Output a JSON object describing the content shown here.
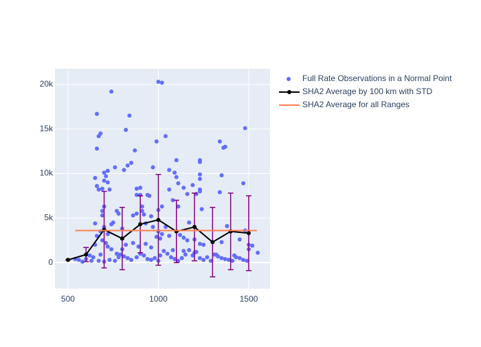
{
  "chart_data": {
    "type": "scatter",
    "xlim": [
      428,
      1618
    ],
    "ylim": [
      -2920,
      21770
    ],
    "xticks": [
      500,
      1000,
      1500
    ],
    "yticks": [
      0,
      {
        "value": 5000,
        "label": "5k"
      },
      {
        "value": 10000,
        "label": "10k"
      },
      {
        "value": 15000,
        "label": "15k"
      },
      {
        "value": 20000,
        "label": "20k"
      }
    ],
    "grid": true,
    "series": [
      {
        "name": "Full Rate Observations in a Normal Point",
        "color": "#636efa",
        "mode": "markers",
        "x": [
          740,
          1000,
          1020,
          660,
          840,
          670,
          680,
          820,
          1040,
          1480,
          660,
          870,
          990,
          1340,
          1360,
          1370,
          1230,
          1230,
          1100,
          850,
          760,
          720,
          700,
          810,
          830,
          970,
          1060,
          1090,
          1230,
          1230,
          1350,
          1470,
          650,
          710,
          700,
          720,
          660,
          670,
          690,
          730,
          880,
          900,
          1060,
          1140,
          1190,
          1230,
          1230,
          1100,
          1110,
          1340,
          900,
          880,
          940,
          950,
          1020,
          1080,
          1110,
          1160,
          1210,
          1240,
          910,
          700,
          690,
          770,
          910,
          1000,
          860,
          880,
          920,
          690,
          780,
          960,
          1380,
          650,
          740,
          750,
          930,
          970,
          1040,
          1170,
          800,
          1000,
          1020,
          1060,
          1120,
          1140,
          1160,
          1200,
          1250,
          1350,
          1450,
          1480,
          1520,
          1550,
          1500,
          1500,
          650,
          660,
          690,
          710,
          720,
          740,
          770,
          790,
          810,
          830,
          850,
          880,
          900,
          920,
          940,
          960,
          980,
          1000,
          1010,
          1030,
          1050,
          1070,
          1090,
          1110,
          1130,
          1150,
          1170,
          1190,
          1210,
          1230,
          1250,
          1270,
          1290,
          1310,
          1330,
          1350,
          1370,
          1390,
          1410,
          1430,
          1450,
          1470,
          1490,
          620,
          600,
          630,
          560,
          540,
          580,
          640,
          670,
          680,
          700,
          730,
          760,
          780,
          800,
          820,
          860,
          890,
          930,
          960,
          990,
          1010,
          1080,
          1140,
          1200,
          1230,
          1320,
          1420,
          700,
          680,
          720
        ],
        "y": [
          19200,
          20300,
          20200,
          16700,
          16500,
          14200,
          14500,
          14900,
          14200,
          15100,
          12800,
          12600,
          13600,
          13600,
          12900,
          13000,
          11500,
          11300,
          11500,
          11200,
          10700,
          10300,
          10100,
          10400,
          10900,
          10700,
          10400,
          10100,
          9900,
          9400,
          9800,
          8900,
          9500,
          9700,
          9200,
          9000,
          8600,
          8200,
          8300,
          8200,
          8300,
          8400,
          8200,
          8400,
          8700,
          8200,
          8000,
          9600,
          8900,
          7900,
          7600,
          7600,
          7600,
          7500,
          6300,
          7000,
          6300,
          7700,
          7700,
          6000,
          6300,
          6300,
          5800,
          5800,
          5800,
          5900,
          5300,
          5500,
          5400,
          5300,
          5500,
          5200,
          4100,
          4400,
          4300,
          4500,
          4400,
          4000,
          4000,
          4500,
          3800,
          3500,
          3200,
          3000,
          3100,
          2800,
          2500,
          2600,
          2000,
          2300,
          2600,
          3600,
          1900,
          1100,
          2000,
          1500,
          2000,
          3000,
          2500,
          2200,
          1800,
          1500,
          1000,
          900,
          700,
          500,
          300,
          600,
          1000,
          800,
          400,
          300,
          500,
          200,
          800,
          1300,
          1000,
          600,
          400,
          200,
          500,
          900,
          1400,
          800,
          1200,
          500,
          300,
          600,
          200,
          900,
          700,
          500,
          400,
          300,
          200,
          600,
          500,
          300,
          200,
          800,
          400,
          200,
          300,
          400,
          100,
          600,
          200,
          900,
          100,
          300,
          200,
          600,
          1500,
          2000,
          2200,
          1800,
          2100,
          1700,
          2900,
          2700,
          1400,
          1300,
          1100,
          2100,
          900,
          800,
          4000,
          3500,
          3200
        ]
      },
      {
        "name": "SHA2 Average by 100 km with STD",
        "color": "#000000",
        "mode": "lines+markers",
        "error_color": "#800080",
        "x": [
          500,
          600,
          700,
          800,
          900,
          1000,
          1100,
          1200,
          1300,
          1400,
          1500
        ],
        "y": [
          300,
          900,
          3700,
          2700,
          4300,
          4800,
          3500,
          4000,
          2300,
          3500,
          3300
        ],
        "error": [
          0,
          800,
          4300,
          3500,
          3200,
          5100,
          3500,
          3800,
          3900,
          4300,
          4200
        ]
      },
      {
        "name": "SHA2 Average for all Ranges",
        "color": "#ff7f50",
        "mode": "lines",
        "x": [
          540,
          1545
        ],
        "y": [
          3600,
          3600
        ]
      }
    ]
  }
}
